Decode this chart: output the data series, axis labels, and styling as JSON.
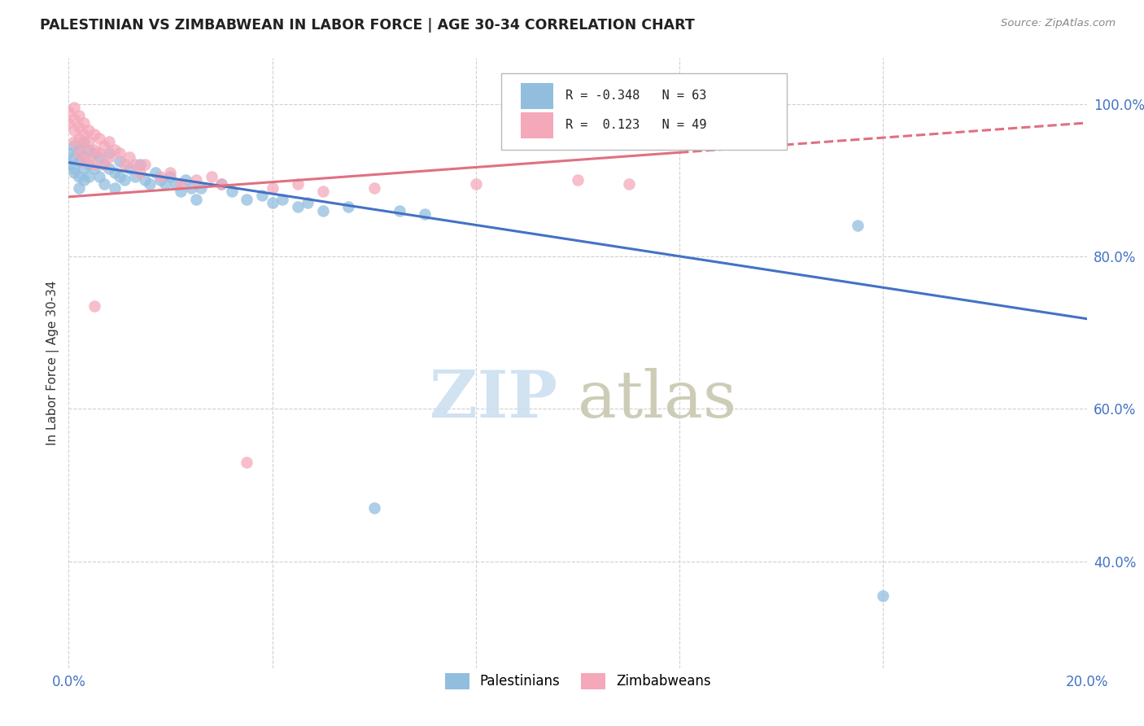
{
  "title": "PALESTINIAN VS ZIMBABWEAN IN LABOR FORCE | AGE 30-34 CORRELATION CHART",
  "source": "Source: ZipAtlas.com",
  "ylabel": "In Labor Force | Age 30-34",
  "xlim": [
    0.0,
    0.2
  ],
  "ylim": [
    0.26,
    1.06
  ],
  "yticks": [
    0.4,
    0.6,
    0.8,
    1.0
  ],
  "ytick_labels": [
    "40.0%",
    "60.0%",
    "80.0%",
    "100.0%"
  ],
  "xtick_positions": [
    0.0,
    0.04,
    0.08,
    0.12,
    0.16,
    0.2
  ],
  "xtick_labels": [
    "0.0%",
    "",
    "",
    "",
    "",
    "20.0%"
  ],
  "blue_color": "#92bede",
  "pink_color": "#f5a8ba",
  "blue_line_color": "#4472c4",
  "pink_line_color": "#e07080",
  "blue_line_x0": 0.0,
  "blue_line_y0": 0.923,
  "blue_line_x1": 0.2,
  "blue_line_y1": 0.718,
  "pink_line_x0": 0.0,
  "pink_line_y0": 0.878,
  "pink_line_x1": 0.2,
  "pink_line_y1": 0.975,
  "pink_line_solid_end": 0.12,
  "watermark_zip_color": "#ccdff0",
  "watermark_atlas_color": "#c8c8b0",
  "legend_r_blue": "R = -0.348",
  "legend_n_blue": "N = 63",
  "legend_r_pink": "R =  0.123",
  "legend_n_pink": "N = 49"
}
